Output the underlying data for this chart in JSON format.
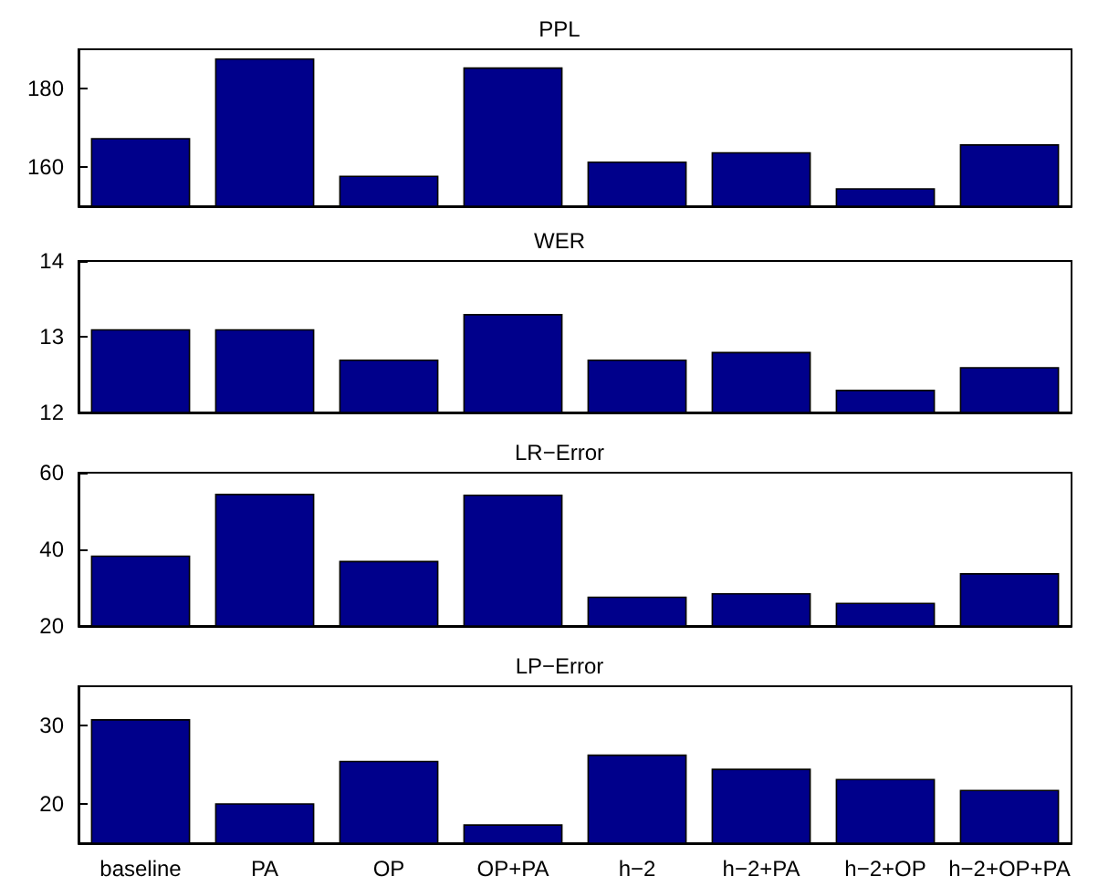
{
  "chart_data": [
    {
      "type": "bar",
      "title": "PPL",
      "categories": [
        null,
        null,
        null,
        null,
        null,
        null,
        null,
        null
      ],
      "values": [
        167.4,
        187.7,
        157.8,
        185.4,
        161.4,
        163.8,
        154.6,
        165.8
      ],
      "color": "#00008b",
      "ylim": [
        150,
        190
      ],
      "yticks": [
        160,
        180
      ],
      "grid": false,
      "tick_labels": "y"
    },
    {
      "type": "bar",
      "title": "WER",
      "categories": [
        null,
        null,
        null,
        null,
        null,
        null,
        null,
        null
      ],
      "values": [
        13.1,
        13.1,
        12.7,
        13.3,
        12.7,
        12.8,
        12.3,
        12.6
      ],
      "color": "#00008b",
      "ylim": [
        12,
        14
      ],
      "yticks": [
        12,
        13,
        14
      ],
      "grid": false,
      "tick_labels": "y"
    },
    {
      "type": "bar",
      "title": "LR−Error",
      "categories": [
        null,
        null,
        null,
        null,
        null,
        null,
        null,
        null
      ],
      "values": [
        38.4,
        54.5,
        37,
        54.3,
        27.7,
        28.6,
        26.1,
        33.8
      ],
      "color": "#00008b",
      "ylim": [
        20,
        60
      ],
      "yticks": [
        20,
        40,
        60
      ],
      "grid": false,
      "tick_labels": "y"
    },
    {
      "type": "bar",
      "title": "LP−Error",
      "categories": [
        "baseline",
        "PA",
        "OP",
        "OP+PA",
        "h−2",
        "h−2+PA",
        "h−2+OP",
        "h−2+OP+PA"
      ],
      "values": [
        30.8,
        20.1,
        25.5,
        17.4,
        26.3,
        24.5,
        23.2,
        21.8
      ],
      "color": "#00008b",
      "ylim": [
        15,
        35
      ],
      "yticks": [
        20,
        30
      ],
      "grid": false
    }
  ]
}
